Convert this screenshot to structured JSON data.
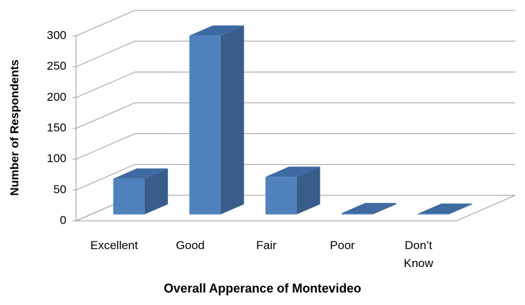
{
  "chart_data": {
    "type": "bar3d",
    "x_label": "Overall Apperance of Montevideo",
    "y_label": "Number of Respondents",
    "categories": [
      "Excellent",
      "Good",
      "Fair",
      "Poor",
      "Don’t Know"
    ],
    "values": [
      58,
      290,
      61,
      2,
      1
    ],
    "color": "#4f81bd",
    "ylim": [
      0,
      300
    ],
    "yticks": [
      0,
      50,
      100,
      150,
      200,
      250,
      300
    ],
    "grid": true
  }
}
